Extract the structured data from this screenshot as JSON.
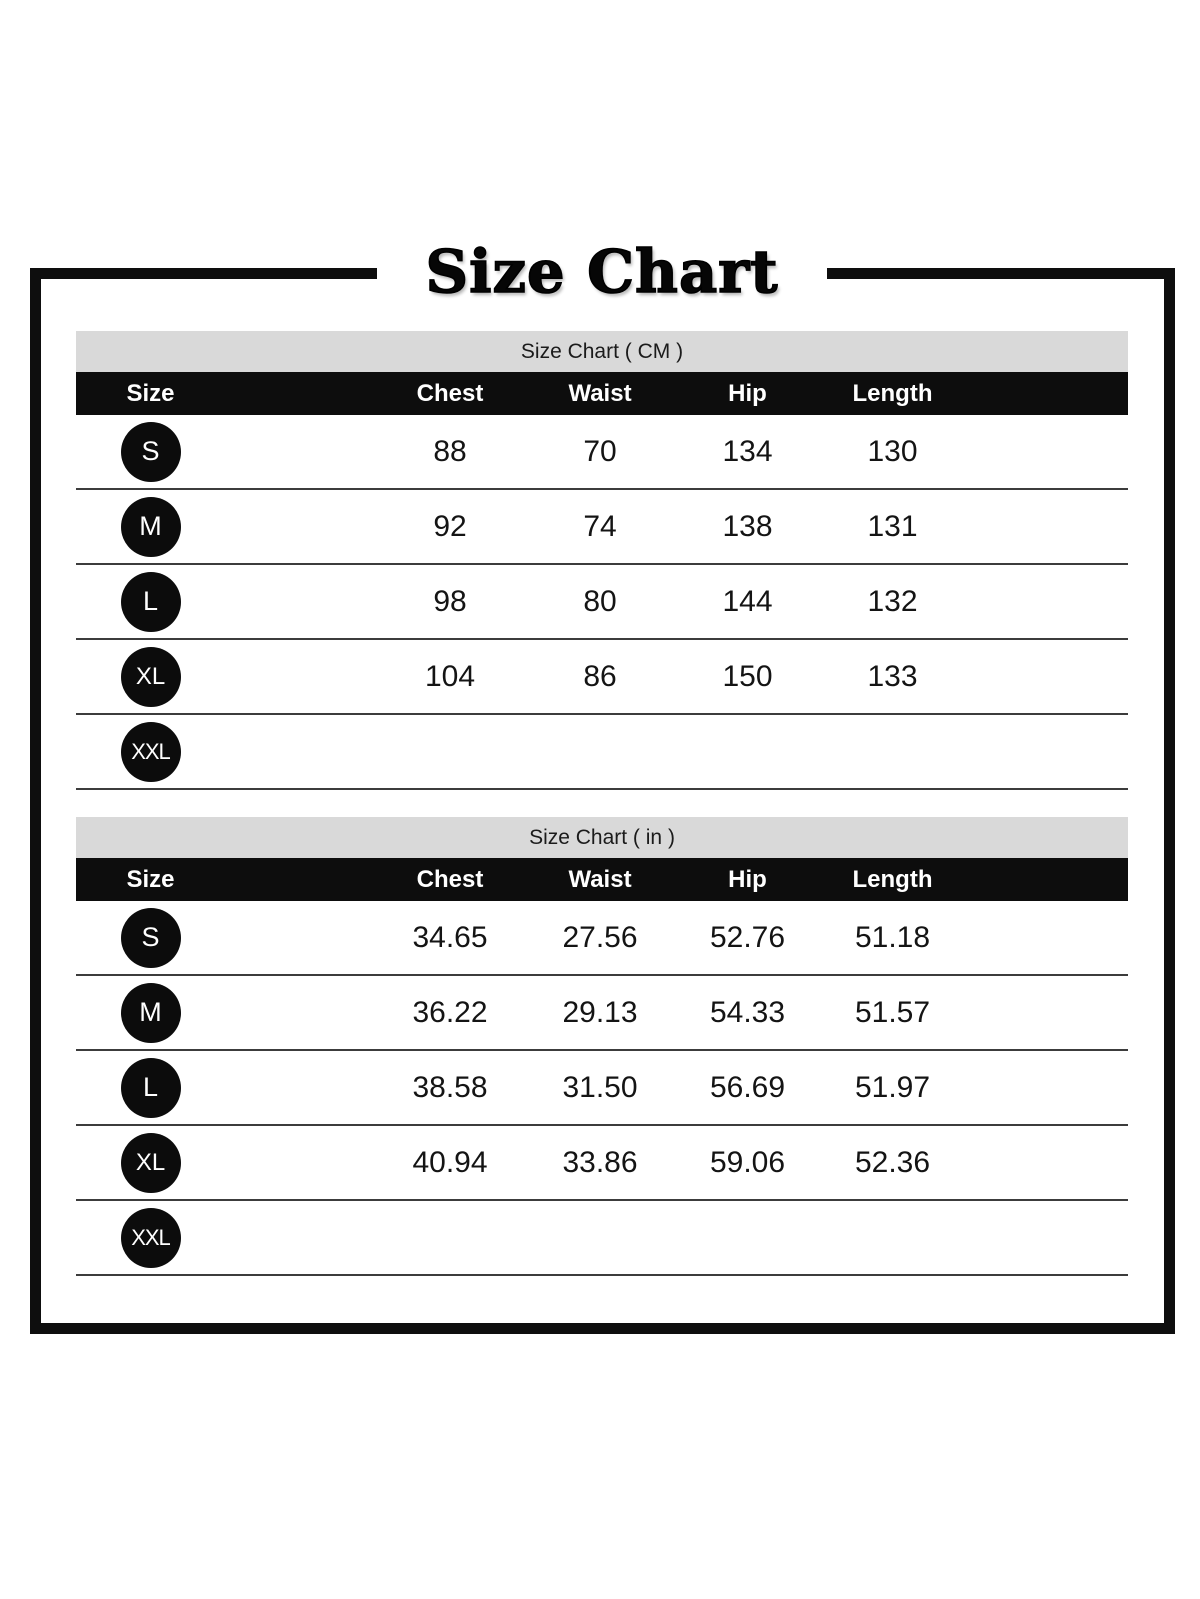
{
  "page": {
    "title": "Size Chart"
  },
  "tables": [
    {
      "title": "Size Chart ( CM )",
      "columns": [
        "Size",
        "Chest",
        "Waist",
        "Hip",
        "Length"
      ],
      "rows": [
        {
          "size": "S",
          "chest": "88",
          "waist": "70",
          "hip": "134",
          "length": "130"
        },
        {
          "size": "M",
          "chest": "92",
          "waist": "74",
          "hip": "138",
          "length": "131"
        },
        {
          "size": "L",
          "chest": "98",
          "waist": "80",
          "hip": "144",
          "length": "132"
        },
        {
          "size": "XL",
          "chest": "104",
          "waist": "86",
          "hip": "150",
          "length": "133"
        },
        {
          "size": "XXL",
          "chest": "",
          "waist": "",
          "hip": "",
          "length": ""
        }
      ]
    },
    {
      "title": "Size Chart ( in )",
      "columns": [
        "Size",
        "Chest",
        "Waist",
        "Hip",
        "Length"
      ],
      "rows": [
        {
          "size": "S",
          "chest": "34.65",
          "waist": "27.56",
          "hip": "52.76",
          "length": "51.18"
        },
        {
          "size": "M",
          "chest": "36.22",
          "waist": "29.13",
          "hip": "54.33",
          "length": "51.57"
        },
        {
          "size": "L",
          "chest": "38.58",
          "waist": "31.50",
          "hip": "56.69",
          "length": "51.97"
        },
        {
          "size": "XL",
          "chest": "40.94",
          "waist": "33.86",
          "hip": "59.06",
          "length": "52.36"
        },
        {
          "size": "XXL",
          "chest": "",
          "waist": "",
          "hip": "",
          "length": ""
        }
      ]
    }
  ],
  "colors": {
    "frame_black": "#0e0e0e",
    "header_black": "#0d0d0d",
    "band_gray": "#d9d9d9",
    "separator_gray": "#3c3c3c",
    "badge_black": "#0c0c0c"
  }
}
